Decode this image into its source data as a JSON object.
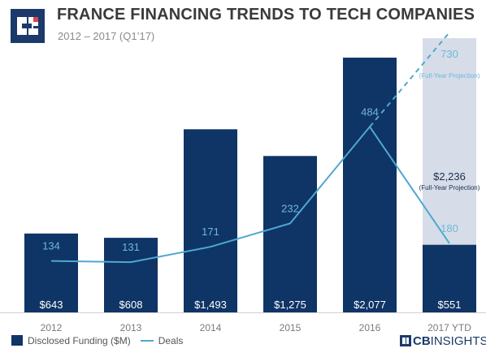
{
  "header": {
    "title": "FRANCE FINANCING TRENDS TO TECH COMPANIES",
    "subtitle": "2012 – 2017 (Q1’17)"
  },
  "legend": {
    "funding_label": "Disclosed Funding ($M)",
    "deals_label": "Deals"
  },
  "brand": {
    "part1": "CB",
    "part2": "INSIGHTS"
  },
  "colors": {
    "bar": "#0f3466",
    "projection_bar": "#d6dde8",
    "deals_line": "#4fa8d1",
    "deal_label": "#6fb8da",
    "funding_label": "#ffffff",
    "axis_text": "#7a7a7a"
  },
  "chart_data": {
    "type": "bar",
    "title": "FRANCE FINANCING TRENDS TO TECH COMPANIES",
    "categories": [
      "2012",
      "2013",
      "2014",
      "2015",
      "2016",
      "2017 YTD"
    ],
    "series": [
      {
        "name": "Disclosed Funding ($M)",
        "type": "bar",
        "values": [
          643,
          608,
          1493,
          1275,
          2077,
          551
        ],
        "labels": [
          "$643",
          "$608",
          "$1,493",
          "$1,275",
          "$2,077",
          "$551"
        ]
      },
      {
        "name": "Deals",
        "type": "line",
        "values": [
          134,
          131,
          171,
          232,
          484,
          180
        ],
        "labels": [
          "134",
          "131",
          "171",
          "232",
          "484",
          "180"
        ]
      }
    ],
    "projection": {
      "category": "2017 YTD",
      "funding_value": 2236,
      "funding_label": "$2,236",
      "funding_note": "(Full-Year Projection)",
      "deals_value": 730,
      "deals_label": "730",
      "deals_note": "(Full-Year Projection)"
    },
    "funding_ylim": [
      0,
      2236
    ],
    "deals_ylim": [
      0,
      730
    ],
    "grid": false,
    "legend_position": "bottom-left"
  }
}
